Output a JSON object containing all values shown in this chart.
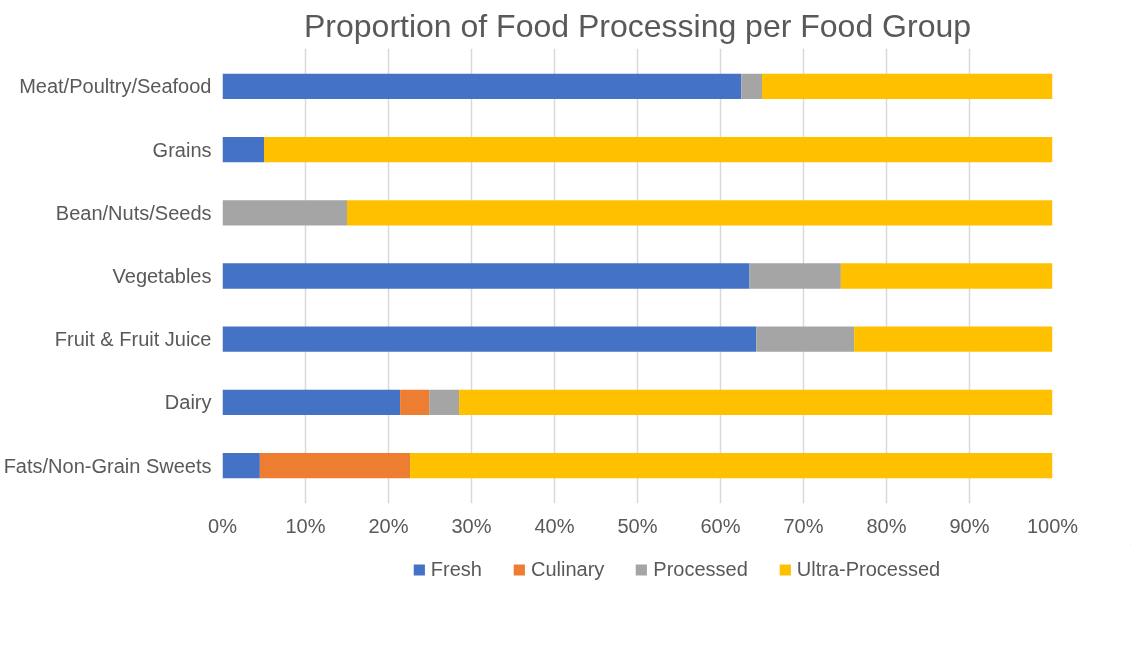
{
  "chart_data": {
    "type": "bar",
    "orientation": "horizontal",
    "stacked": true,
    "title": "Proportion of Food Processing per Food Group",
    "categories": [
      "Meat/Poultry/Seafood",
      "Grains",
      "Bean/Nuts/Seeds",
      "Vegetables",
      "Fruit & Fruit Juice",
      "Dairy",
      "Fats/Non-Grain Sweets"
    ],
    "series": [
      {
        "name": "Fresh",
        "color": "#4472c4",
        "values": [
          62.5,
          5,
          0,
          63.5,
          64.3,
          21.4,
          4.5
        ]
      },
      {
        "name": "Culinary",
        "color": "#ed7d31",
        "values": [
          0,
          0,
          0,
          0,
          0,
          3.5,
          18.1
        ]
      },
      {
        "name": "Processed",
        "color": "#a5a5a5",
        "values": [
          2.5,
          0,
          15,
          11,
          11.8,
          3.6,
          0
        ]
      },
      {
        "name": "Ultra-Processed",
        "color": "#ffc000",
        "values": [
          35,
          95,
          85,
          25.5,
          23.9,
          71.5,
          77.4
        ]
      }
    ],
    "xlim": [
      0,
      100
    ],
    "xticks": [
      {
        "value": 0,
        "label": "0%"
      },
      {
        "value": 10,
        "label": "10%"
      },
      {
        "value": 20,
        "label": "20%"
      },
      {
        "value": 30,
        "label": "30%"
      },
      {
        "value": 40,
        "label": "40%"
      },
      {
        "value": 50,
        "label": "50%"
      },
      {
        "value": 60,
        "label": "60%"
      },
      {
        "value": 70,
        "label": "70%"
      },
      {
        "value": 80,
        "label": "80%"
      },
      {
        "value": 90,
        "label": "90%"
      },
      {
        "value": 100,
        "label": "100%"
      }
    ],
    "grid": "x",
    "legend": "bottom"
  }
}
